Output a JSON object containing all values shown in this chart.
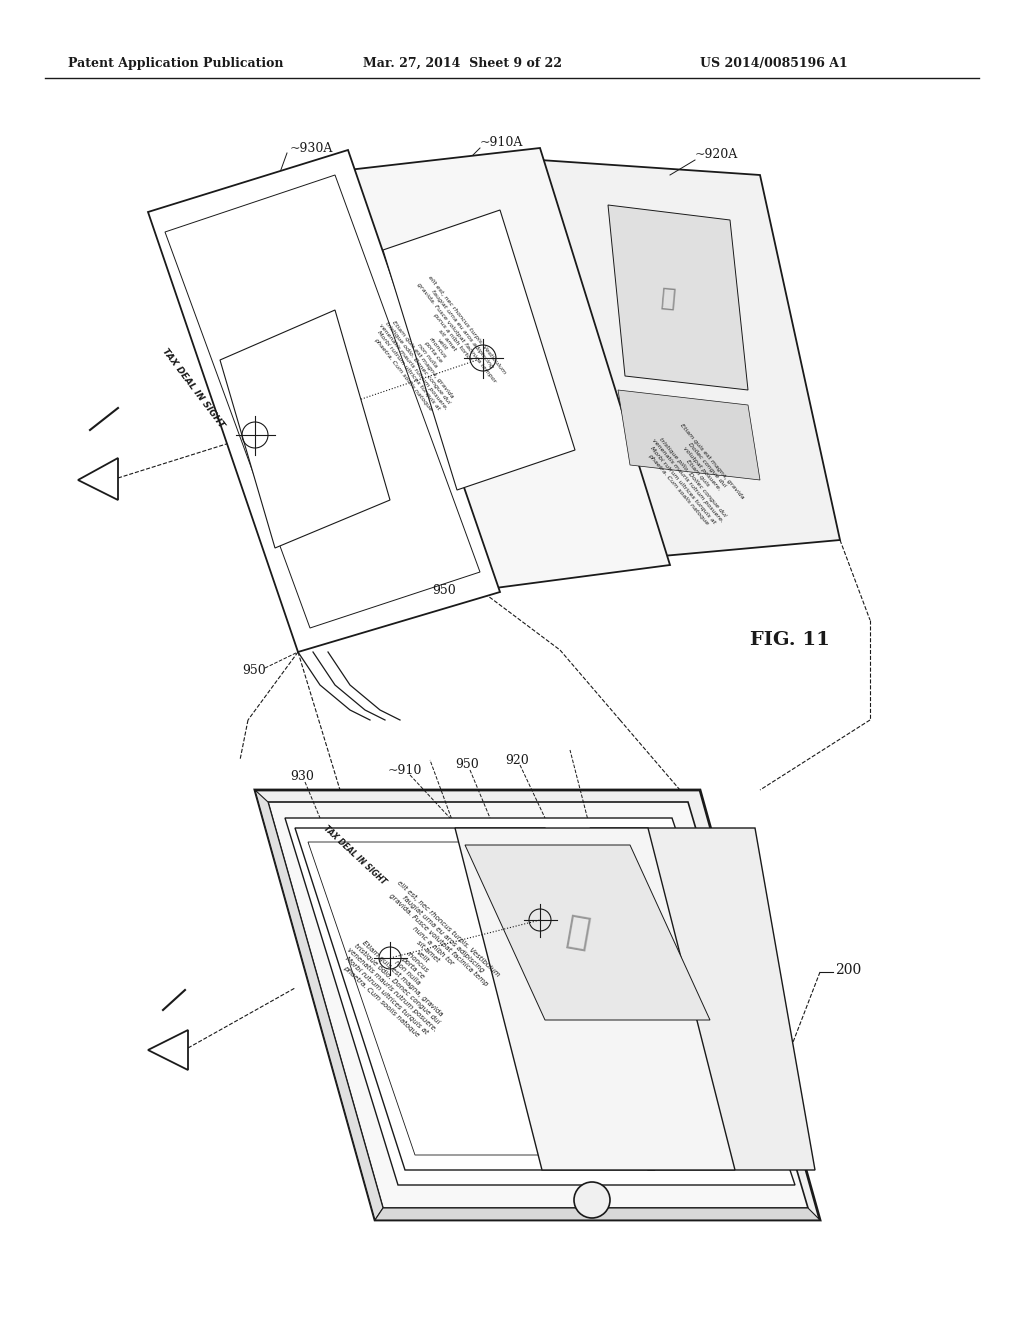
{
  "title_left": "Patent Application Publication",
  "title_mid": "Mar. 27, 2014  Sheet 9 of 22",
  "title_right": "US 2014/0085196 A1",
  "fig_label": "FIG. 11",
  "bg_color": "#ffffff",
  "line_color": "#1a1a1a",
  "label_930A": "~930A",
  "label_910A": "~910A",
  "label_920A": "~920A",
  "label_950a": "950",
  "label_950b": "950",
  "label_950c": "950",
  "label_930": "930",
  "label_910": "~910",
  "label_920": "920",
  "label_200": "200",
  "text_tax": "TAX DEAL IN SIGHT"
}
